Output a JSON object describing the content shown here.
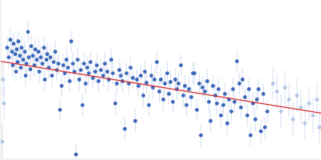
{
  "chart_data": {
    "type": "scatter",
    "xlim": [
      0,
      400
    ],
    "ylim": [
      0,
      200
    ],
    "xticks": [],
    "yticks": [],
    "tick_labels": false,
    "grid": false,
    "series": [
      {
        "type": "scatter",
        "color": "#3a66b8",
        "marker": "circle",
        "error": 14,
        "x": [
          8,
          10,
          12,
          14,
          15,
          16,
          18,
          19,
          20,
          21,
          22,
          24,
          25,
          26,
          28,
          30,
          31,
          32,
          34,
          35,
          37,
          38,
          40,
          42,
          43,
          45,
          47,
          48,
          50,
          52,
          54,
          55,
          57,
          58,
          60,
          62,
          64,
          66,
          68,
          70,
          72,
          74,
          76,
          78,
          80,
          82,
          84,
          86,
          88,
          90,
          92,
          94,
          96,
          98,
          100,
          102,
          104,
          106,
          108,
          110,
          112,
          115,
          118,
          120,
          122,
          125,
          128,
          130,
          133,
          135,
          138,
          140,
          143,
          145,
          148,
          150,
          152,
          155,
          157,
          160,
          162,
          165,
          168,
          170,
          172,
          175,
          178,
          180,
          182,
          185,
          188,
          190,
          192,
          195,
          198,
          200,
          203,
          205,
          208,
          210,
          212,
          215,
          218,
          220,
          222,
          225,
          228,
          230,
          232,
          235,
          238,
          240,
          242,
          245,
          248,
          250,
          252,
          255,
          258,
          260,
          262,
          265,
          268,
          270,
          272,
          275,
          278,
          280,
          283,
          285,
          288,
          290,
          292,
          295,
          298,
          300,
          302,
          305,
          308,
          310,
          312,
          315,
          318,
          320,
          322,
          325,
          328,
          330,
          333
        ],
        "values": [
          140,
          128,
          150,
          135,
          118,
          145,
          132,
          110,
          138,
          122,
          148,
          130,
          115,
          140,
          125,
          135,
          105,
          120,
          160,
          128,
          113,
          142,
          130,
          118,
          138,
          125,
          135,
          110,
          128,
          120,
          140,
          100,
          125,
          132,
          115,
          128,
          105,
          122,
          135,
          112,
          120,
          62,
          92,
          118,
          108,
          125,
          115,
          98,
          148,
          120,
          110,
          6,
          125,
          100,
          112,
          68,
          120,
          95,
          115,
          108,
          122,
          102,
          110,
          118,
          98,
          112,
          105,
          120,
          110,
          100,
          125,
          108,
          70,
          95,
          112,
          105,
          98,
          38,
          108,
          95,
          115,
          102,
          48,
          100,
          92,
          105,
          80,
          110,
          96,
          68,
          105,
          90,
          100,
          122,
          85,
          100,
          75,
          95,
          108,
          82,
          97,
          72,
          100,
          88,
          95,
          118,
          80,
          92,
          68,
          88,
          78,
          108,
          108,
          62,
          95,
          30,
          90,
          85,
          98,
          72,
          48,
          92,
          80,
          70,
          88,
          55,
          68,
          82,
          45,
          75,
          60,
          88,
          72,
          123,
          95,
          65,
          100,
          78,
          55,
          88,
          30,
          70,
          50,
          75,
          88,
          35,
          82,
          40,
          60
        ]
      },
      {
        "type": "scatter",
        "color": "#b3c6e6",
        "marker": "circle",
        "error": 22,
        "x": [
          2,
          3,
          4,
          340,
          345,
          350,
          355,
          360,
          365,
          370,
          375,
          380,
          385,
          390,
          395,
          398
        ],
        "values": [
          22,
          100,
          70,
          95,
          85,
          60,
          90,
          75,
          50,
          80,
          65,
          45,
          70,
          55,
          75,
          40
        ]
      },
      {
        "type": "line",
        "color": "#d62728",
        "line_style": "solid",
        "x": [
          0,
          400
        ],
        "values": [
          123,
          58
        ]
      }
    ]
  }
}
